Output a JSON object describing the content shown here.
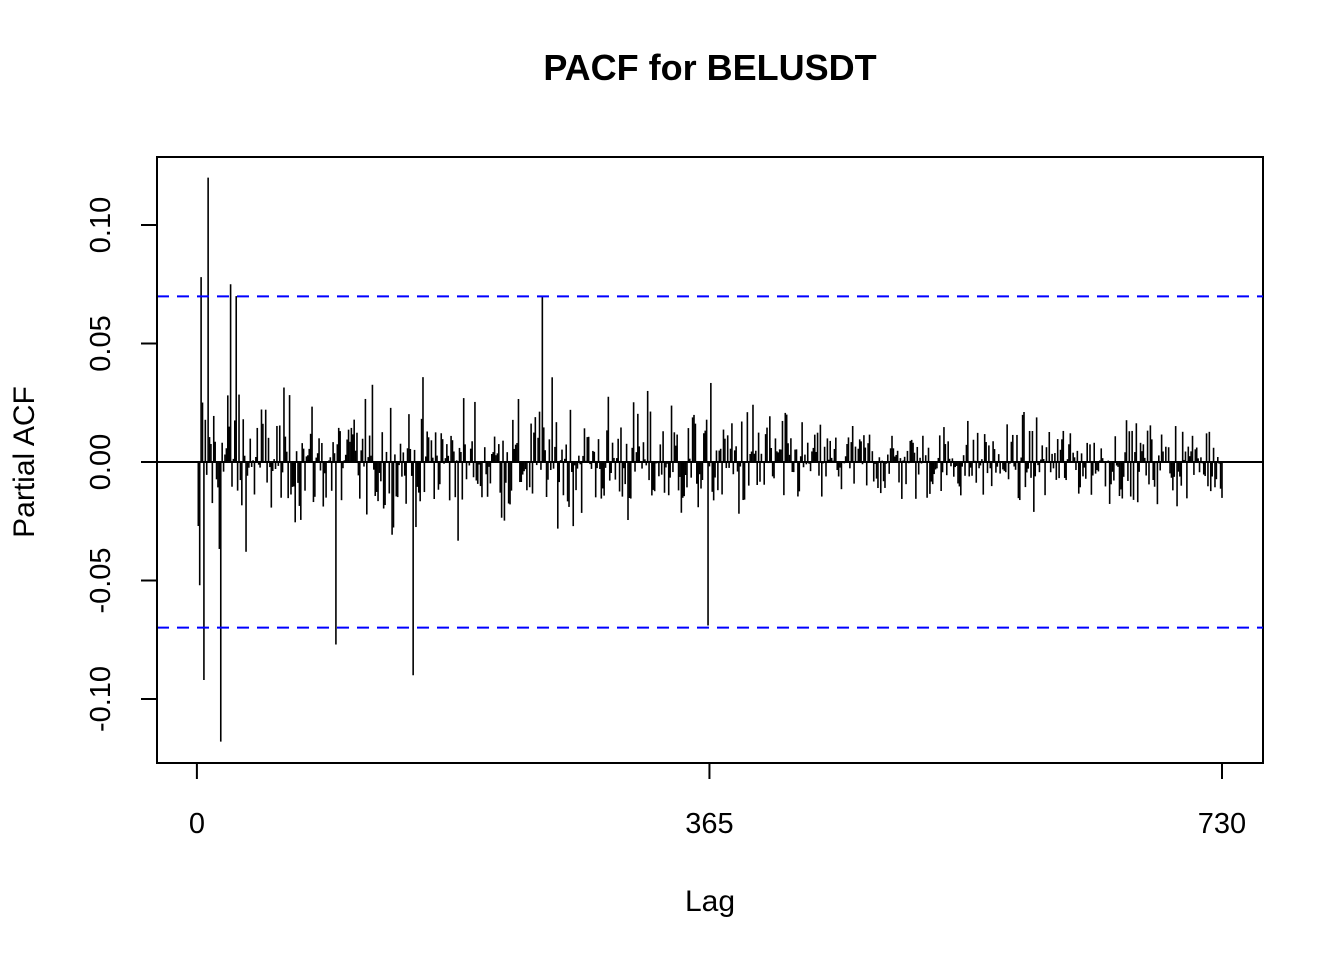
{
  "chart_data": {
    "type": "bar",
    "title": "PACF for BELUSDT",
    "xlabel": "Lag",
    "ylabel": "Partial ACF",
    "xlim": [
      1,
      730
    ],
    "ylim": [
      -0.118,
      0.12
    ],
    "xticks": [
      {
        "value": 0,
        "label": "0"
      },
      {
        "value": 365,
        "label": "365"
      },
      {
        "value": 730,
        "label": "730"
      }
    ],
    "yticks": [
      {
        "value": -0.1,
        "label": "-0.10"
      },
      {
        "value": -0.05,
        "label": "-0.05"
      },
      {
        "value": 0.0,
        "label": "0.00"
      },
      {
        "value": 0.05,
        "label": "0.05"
      },
      {
        "value": 0.1,
        "label": "0.10"
      }
    ],
    "confidence_bound": 0.0699,
    "bound_color": "#0000ff",
    "bar_color": "#000000",
    "grid": false,
    "noted_extremes": [
      {
        "lag": 1,
        "value": -0.027
      },
      {
        "lag": 2,
        "value": -0.052
      },
      {
        "lag": 3,
        "value": 0.078
      },
      {
        "lag": 5,
        "value": -0.092
      },
      {
        "lag": 8,
        "value": 0.12
      },
      {
        "lag": 17,
        "value": -0.118
      },
      {
        "lag": 24,
        "value": 0.075
      },
      {
        "lag": 28,
        "value": 0.07
      },
      {
        "lag": 99,
        "value": -0.077
      },
      {
        "lag": 154,
        "value": -0.09
      },
      {
        "lag": 246,
        "value": 0.07
      },
      {
        "lag": 364,
        "value": -0.069
      }
    ]
  }
}
